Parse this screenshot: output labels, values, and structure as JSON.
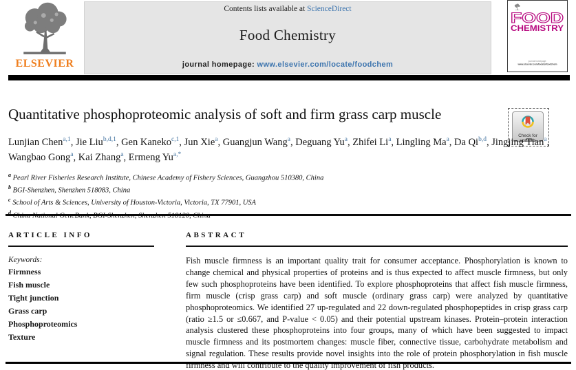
{
  "masthead": {
    "contents_prefix": "Contents lists available at ",
    "sciencedirect_link": "ScienceDirect",
    "journal_name": "Food Chemistry",
    "homepage_label": "journal homepage: ",
    "homepage_url": "www.elsevier.com/locate/foodchem",
    "elsevier_wordmark": "ELSEVIER",
    "cover_title_line1": "FOOD",
    "cover_title_line2": "CHEMISTRY",
    "crossmark_label": "Check for updates",
    "colors": {
      "elsevier_orange": "#ef7f1f",
      "journal_magenta": "#b7097f",
      "link_blue": "#3c74ae",
      "band_gray": "#e5e5e5"
    }
  },
  "article": {
    "title": "Quantitative phosphoproteomic analysis of soft and firm grass carp muscle",
    "authors": [
      {
        "name": "Lunjian Chen",
        "sup": "a,1"
      },
      {
        "name": "Jie Liu",
        "sup": "b,d,1"
      },
      {
        "name": "Gen Kaneko",
        "sup": "c,1"
      },
      {
        "name": "Jun Xie",
        "sup": "a"
      },
      {
        "name": "Guangjun Wang",
        "sup": "a"
      },
      {
        "name": "Deguang Yu",
        "sup": "a"
      },
      {
        "name": "Zhifei Li",
        "sup": "a"
      },
      {
        "name": "Lingling Ma",
        "sup": "a"
      },
      {
        "name": "Da Qi",
        "sup": "b,d"
      },
      {
        "name": "Jingjing Tian",
        "sup": "a"
      },
      {
        "name": "Wangbao Gong",
        "sup": "a"
      },
      {
        "name": "Kai Zhang",
        "sup": "a"
      },
      {
        "name": "Ermeng Yu",
        "sup": "a,*"
      }
    ],
    "affiliations": [
      {
        "sup": "a",
        "text": "Pearl River Fisheries Research Institute, Chinese Academy of Fishery Sciences, Guangzhou 510380, China"
      },
      {
        "sup": "b",
        "text": "BGI-Shenzhen, Shenzhen 518083, China"
      },
      {
        "sup": "c",
        "text": "School of Arts & Sciences, University of Houston-Victoria, Victoria, TX 77901, USA"
      },
      {
        "sup": "d",
        "text": "China National GeneBank, BGI-Shenzhen, Shenzhen 518120, China"
      }
    ]
  },
  "sections": {
    "article_info_heading": "ARTICLE INFO",
    "abstract_heading": "ABSTRACT",
    "keywords_label": "Keywords:",
    "keywords": [
      "Firmness",
      "Fish muscle",
      "Tight junction",
      "Grass carp",
      "Phosphoproteomics",
      "Texture"
    ],
    "abstract_text": "Fish muscle firmness is an important quality trait for consumer acceptance. Phosphorylation is known to change chemical and physical properties of proteins and is thus expected to affect muscle firmness, but only few such phosphoproteins have been identified. To explore phosphoproteins that affect fish muscle firmness, firm muscle (crisp grass carp) and soft muscle (ordinary grass carp) were analyzed by quantitative phosphoproteomics. We identified 27 up-regulated and 22 down-regulated phosphopeptides in crisp grass carp (ratio ≥1.5 or ≤0.667, and P-value < 0.05) and their potential upstream kinases. Protein–protein interaction analysis clustered these phosphoproteins into four groups, many of which have been suggested to impact muscle firmness and its postmortem changes: muscle fiber, connective tissue, carbohydrate metabolism and signal regulation. These results provide novel insights into the role of protein phosphorylation in fish muscle firmness and will contribute to the quality improvement of fish products."
  }
}
